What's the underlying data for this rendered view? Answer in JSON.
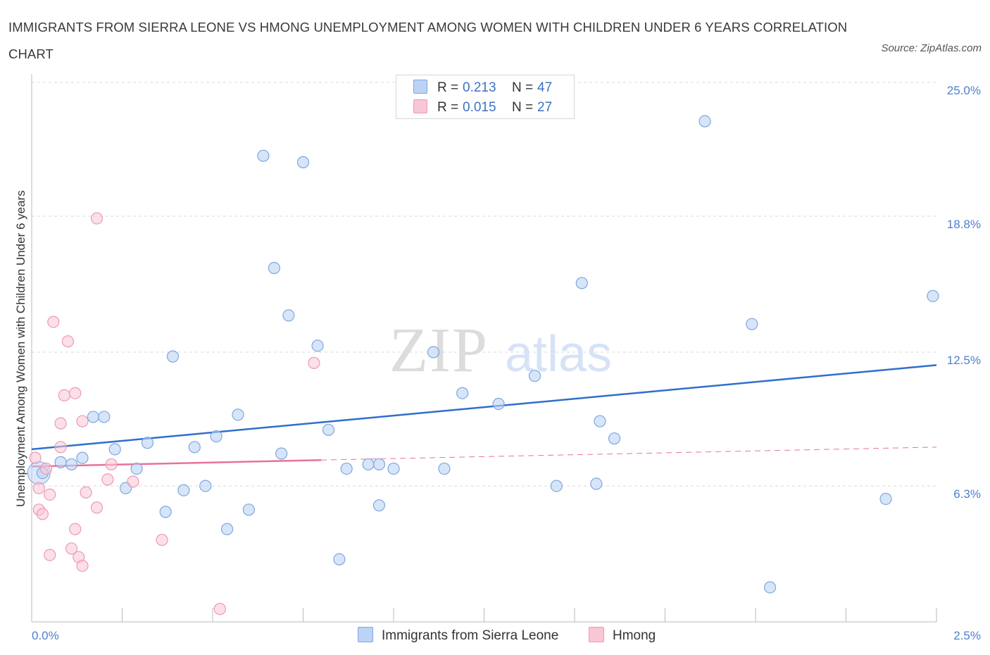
{
  "title": "IMMIGRANTS FROM SIERRA LEONE VS HMONG UNEMPLOYMENT AMONG WOMEN WITH CHILDREN UNDER 6 YEARS CORRELATION CHART",
  "source": "Source: ZipAtlas.com",
  "watermark": {
    "zip": "ZIP",
    "atlas": "atlas"
  },
  "legend": {
    "rows": [
      {
        "r_label": "R =",
        "r_value": "0.213",
        "n_label": "N =",
        "n_value": "47"
      },
      {
        "r_label": "R =",
        "r_value": "0.015",
        "n_label": "N =",
        "n_value": "27"
      }
    ]
  },
  "bottom_legend": {
    "series1": "Immigrants from Sierra Leone",
    "series2": "Hmong"
  },
  "colors": {
    "blue_fill": "#bcd3f5",
    "blue_stroke": "#7ea6e0",
    "blue_line": "#2f6fcc",
    "pink_fill": "#f8c6d5",
    "pink_stroke": "#ec9ab3",
    "pink_line": "#e8729a",
    "tick_text": "#4f7fd0",
    "grid": "#d9d9d9"
  },
  "chart_data": {
    "type": "scatter",
    "title": "IMMIGRANTS FROM SIERRA LEONE VS HMONG UNEMPLOYMENT AMONG WOMEN WITH CHILDREN UNDER 6 YEARS CORRELATION CHART",
    "xlabel": "",
    "ylabel": "Unemployment Among Women with Children Under 6 years",
    "xlim": [
      0,
      2.5
    ],
    "ylim": [
      0,
      25.0
    ],
    "x_tick_labels": [
      "0.0%",
      "2.5%"
    ],
    "y_ticks": [
      6.3,
      12.5,
      18.8,
      25.0
    ],
    "y_tick_labels": [
      "6.3%",
      "12.5%",
      "18.8%",
      "25.0%"
    ],
    "grid": "horizontal dashed",
    "legend_position": "top-center",
    "series": [
      {
        "name": "Immigrants from Sierra Leone",
        "color": "#bcd3f5",
        "points": [
          [
            0.03,
            6.9
          ],
          [
            0.08,
            7.4
          ],
          [
            0.11,
            7.3
          ],
          [
            0.14,
            7.6
          ],
          [
            0.17,
            9.5
          ],
          [
            0.2,
            9.5
          ],
          [
            0.23,
            8.0
          ],
          [
            0.26,
            6.2
          ],
          [
            0.29,
            7.1
          ],
          [
            0.32,
            8.3
          ],
          [
            0.37,
            5.1
          ],
          [
            0.39,
            12.3
          ],
          [
            0.42,
            6.1
          ],
          [
            0.45,
            8.1
          ],
          [
            0.48,
            6.3
          ],
          [
            0.51,
            8.6
          ],
          [
            0.54,
            4.3
          ],
          [
            0.57,
            9.6
          ],
          [
            0.6,
            5.2
          ],
          [
            0.64,
            21.6
          ],
          [
            0.67,
            16.4
          ],
          [
            0.69,
            7.8
          ],
          [
            0.71,
            14.2
          ],
          [
            0.75,
            21.3
          ],
          [
            0.79,
            12.8
          ],
          [
            0.82,
            8.9
          ],
          [
            0.85,
            2.9
          ],
          [
            0.87,
            7.1
          ],
          [
            0.93,
            7.3
          ],
          [
            0.96,
            5.4
          ],
          [
            0.96,
            7.3
          ],
          [
            1.0,
            7.1
          ],
          [
            1.11,
            12.5
          ],
          [
            1.14,
            7.1
          ],
          [
            1.19,
            10.6
          ],
          [
            1.29,
            10.1
          ],
          [
            1.39,
            11.4
          ],
          [
            1.45,
            6.3
          ],
          [
            1.52,
            15.7
          ],
          [
            1.56,
            6.4
          ],
          [
            1.57,
            9.3
          ],
          [
            1.61,
            8.5
          ],
          [
            1.86,
            23.2
          ],
          [
            1.99,
            13.8
          ],
          [
            2.04,
            1.6
          ],
          [
            2.36,
            5.7
          ],
          [
            2.49,
            15.1
          ]
        ]
      },
      {
        "name": "Hmong",
        "color": "#f8c6d5",
        "points": [
          [
            0.01,
            7.6
          ],
          [
            0.02,
            6.2
          ],
          [
            0.02,
            5.2
          ],
          [
            0.03,
            5.0
          ],
          [
            0.04,
            7.1
          ],
          [
            0.05,
            3.1
          ],
          [
            0.05,
            5.9
          ],
          [
            0.06,
            13.9
          ],
          [
            0.08,
            9.2
          ],
          [
            0.08,
            8.1
          ],
          [
            0.09,
            10.5
          ],
          [
            0.1,
            13.0
          ],
          [
            0.11,
            3.4
          ],
          [
            0.12,
            4.3
          ],
          [
            0.12,
            10.6
          ],
          [
            0.13,
            3.0
          ],
          [
            0.14,
            2.6
          ],
          [
            0.14,
            9.3
          ],
          [
            0.15,
            6.0
          ],
          [
            0.18,
            5.3
          ],
          [
            0.18,
            18.7
          ],
          [
            0.21,
            6.6
          ],
          [
            0.22,
            7.3
          ],
          [
            0.28,
            6.5
          ],
          [
            0.36,
            3.8
          ],
          [
            0.52,
            0.6
          ],
          [
            0.78,
            12.0
          ]
        ]
      }
    ],
    "trend_lines": [
      {
        "series": "Immigrants from Sierra Leone",
        "from": [
          0.0,
          8.0
        ],
        "to": [
          2.5,
          11.9
        ],
        "style": "solid"
      },
      {
        "series": "Hmong",
        "from": [
          0.0,
          7.2
        ],
        "to": [
          0.8,
          7.5
        ],
        "style": "solid"
      },
      {
        "series": "Hmong",
        "from": [
          0.8,
          7.5
        ],
        "to": [
          2.5,
          8.1
        ],
        "style": "dashed"
      }
    ]
  }
}
